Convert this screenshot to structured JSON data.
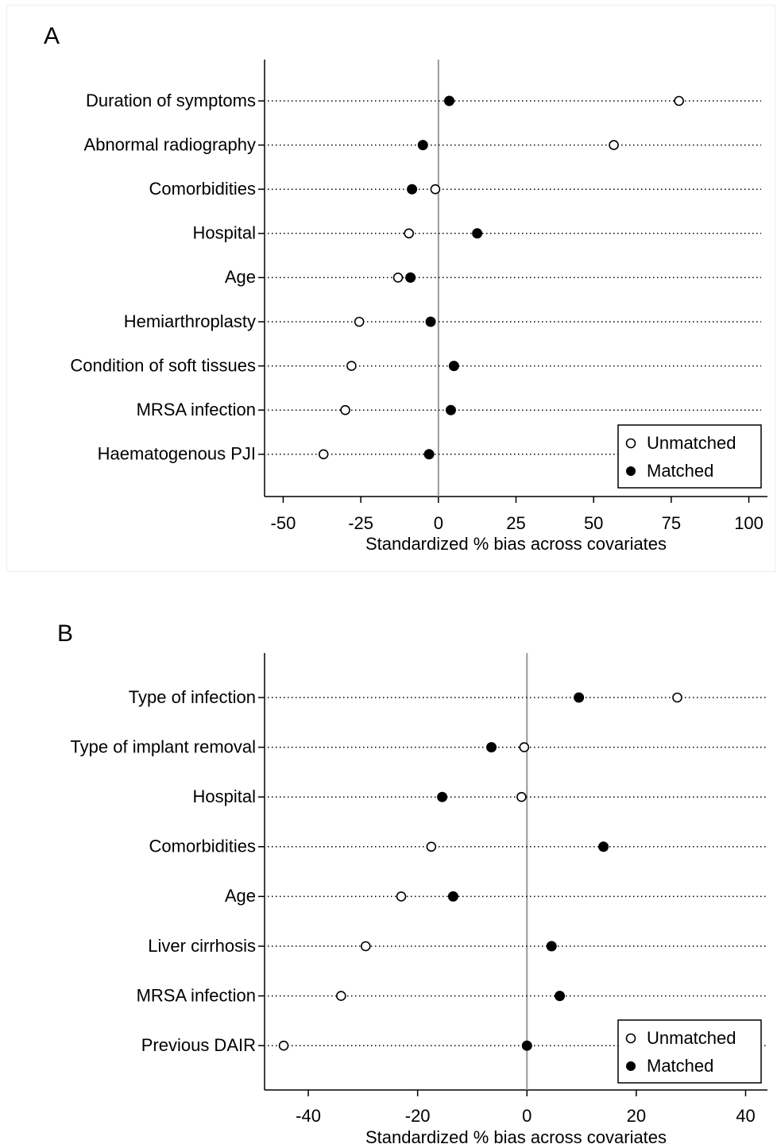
{
  "chart_data": [
    {
      "type": "scatter",
      "panel_label": "A",
      "xlabel": "Standardized % bias across covariates",
      "xlim": [
        -56,
        106
      ],
      "xticks": [
        -50,
        -25,
        0,
        25,
        50,
        75,
        100
      ],
      "categories": [
        "Duration of symptoms",
        "Abnormal radiography",
        "Comorbidities",
        "Hospital",
        "Age",
        "Hemiarthroplasty",
        "Condition of soft tissues",
        "MRSA infection",
        "Haematogenous PJI"
      ],
      "series": [
        {
          "name": "Unmatched",
          "marker": "hollow-circle",
          "values": [
            77.5,
            56.5,
            -1,
            -9.5,
            -13,
            -25.5,
            -28,
            -30,
            -37
          ]
        },
        {
          "name": "Matched",
          "marker": "filled-circle",
          "values": [
            3.5,
            -5,
            -8.5,
            12.5,
            -9,
            -2.5,
            5,
            4,
            -3
          ]
        }
      ],
      "legend_position": "bottom-right",
      "reference_line_x": 0
    },
    {
      "type": "scatter",
      "panel_label": "B",
      "xlabel": "Standardized % bias across covariates",
      "xlim": [
        -48,
        44
      ],
      "xticks": [
        -40,
        -20,
        0,
        20,
        40
      ],
      "categories": [
        "Type of infection",
        "Type of implant removal",
        "Hospital",
        "Comorbidities",
        "Age",
        "Liver cirrhosis",
        "MRSA infection",
        "Previous DAIR"
      ],
      "series": [
        {
          "name": "Unmatched",
          "marker": "hollow-circle",
          "values": [
            27.5,
            -0.5,
            -1,
            -17.5,
            -23,
            -29.5,
            -34,
            -44.5
          ]
        },
        {
          "name": "Matched",
          "marker": "filled-circle",
          "values": [
            9.5,
            -6.5,
            -15.5,
            14,
            -13.5,
            4.5,
            6,
            0
          ]
        }
      ],
      "legend_position": "bottom-right",
      "reference_line_x": 0
    }
  ]
}
